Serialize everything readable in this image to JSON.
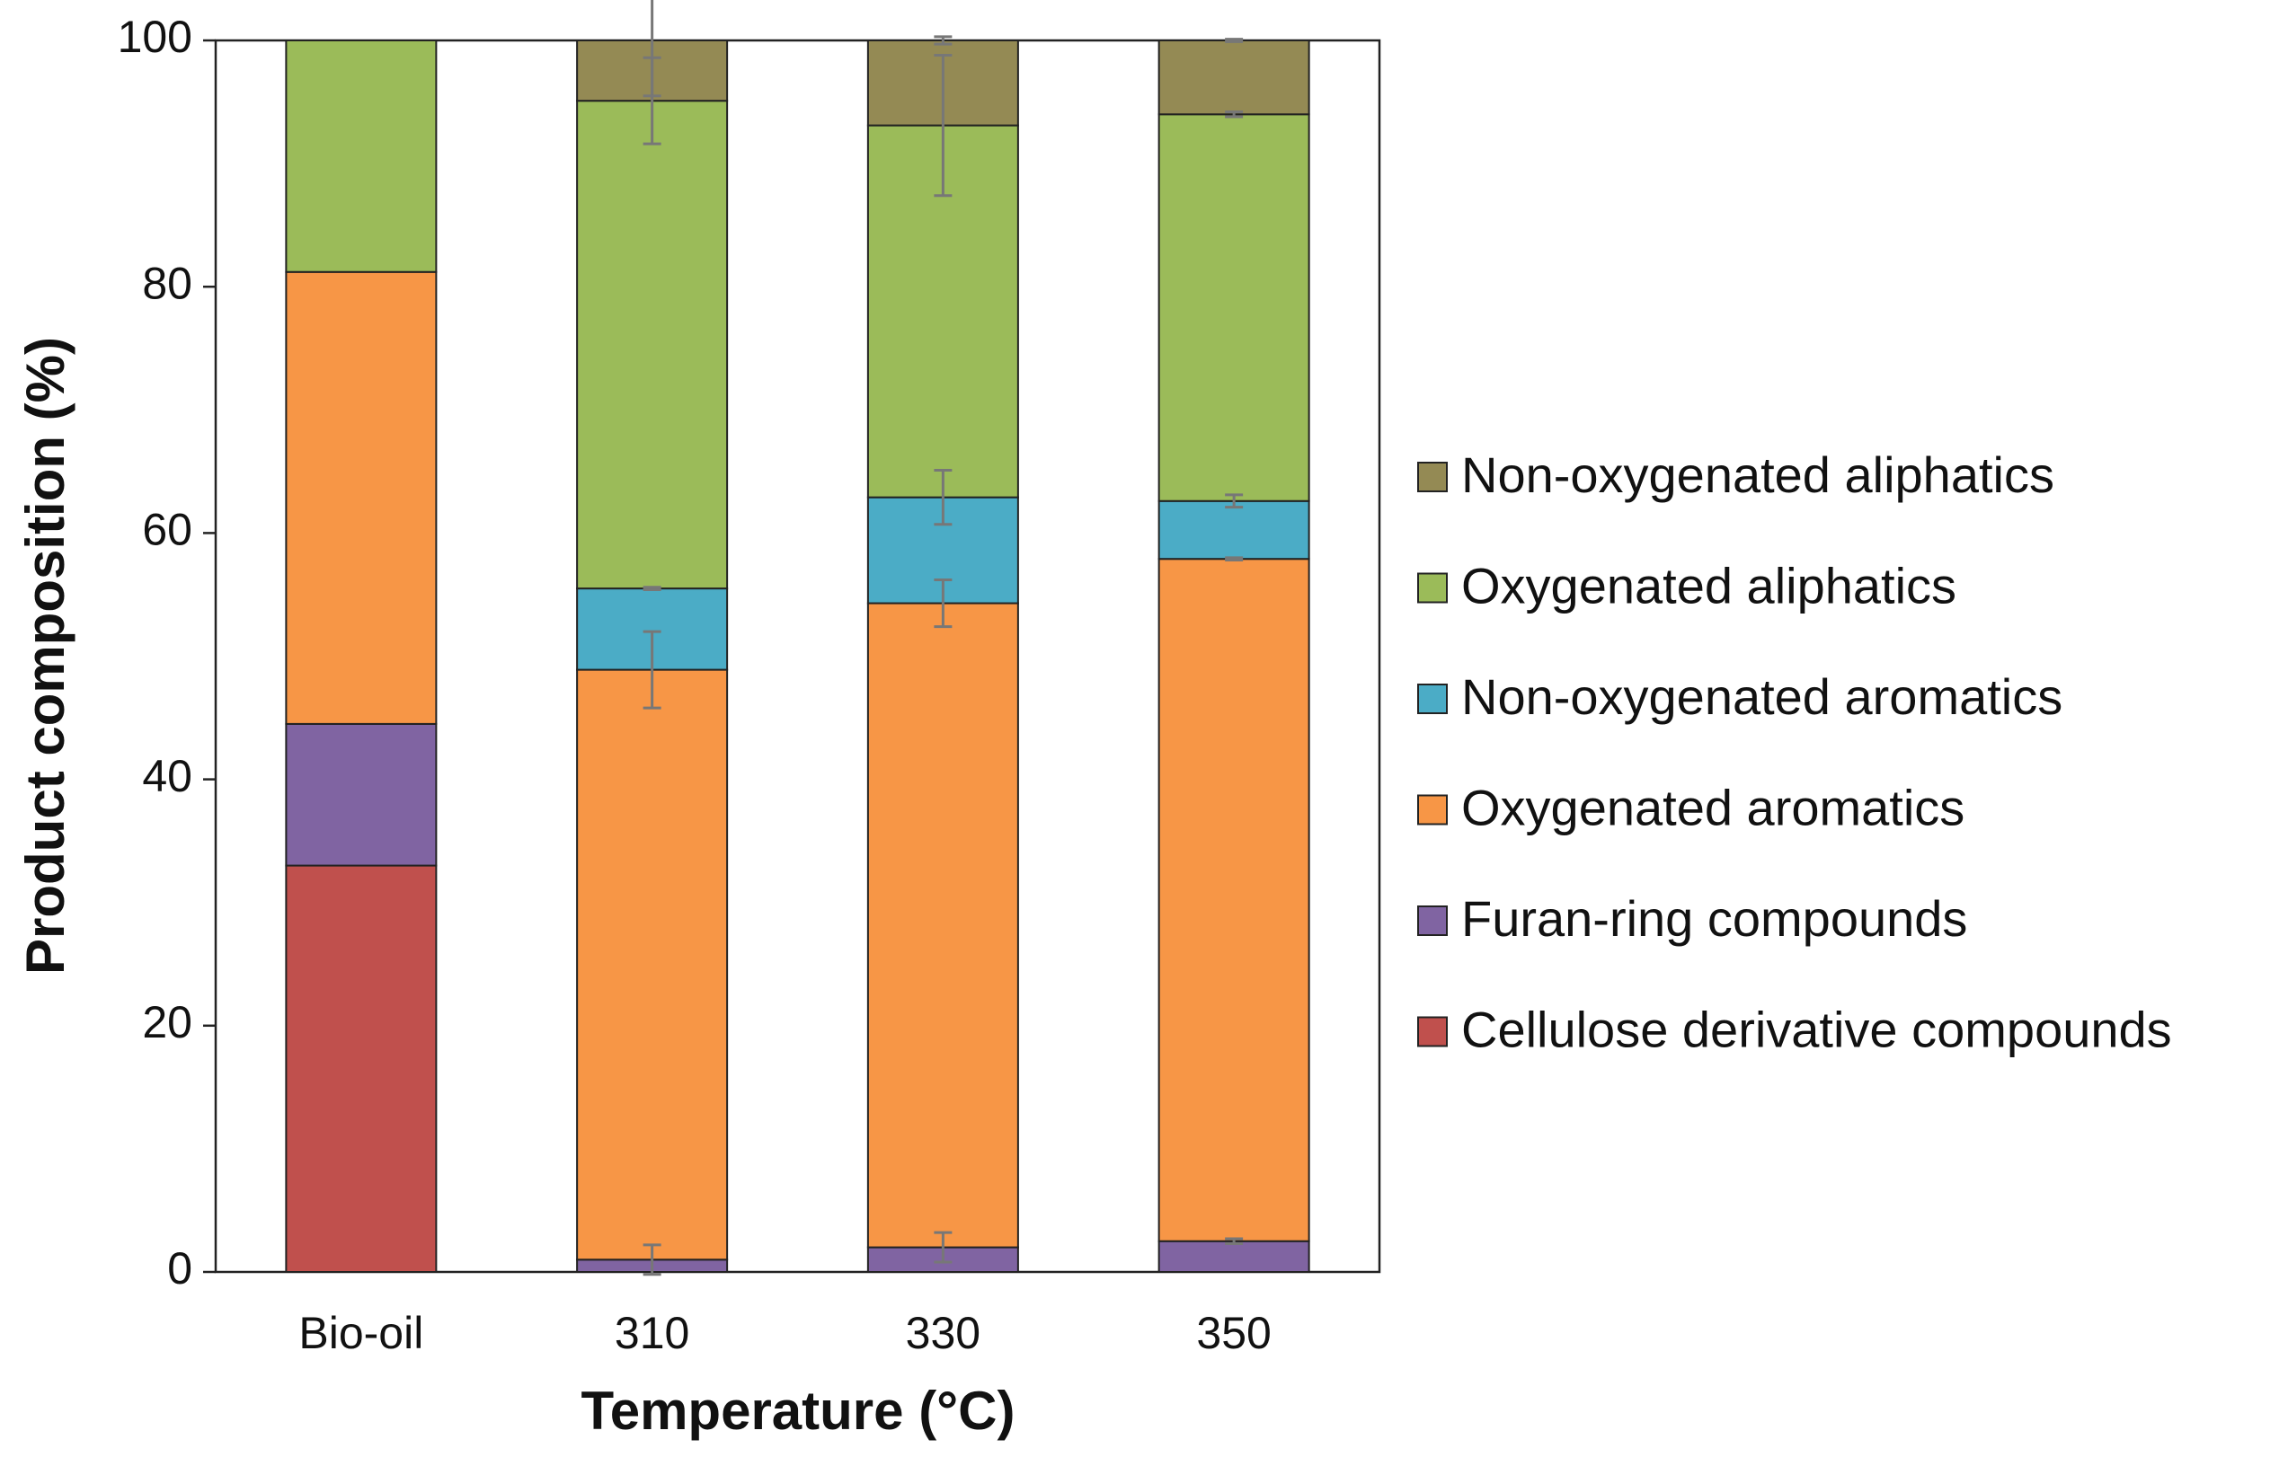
{
  "chart_data": {
    "type": "stacked_bar",
    "xlabel": "Temperature (°C)",
    "ylabel": "Product composition (%)",
    "categories": [
      "Bio-oil",
      "310",
      "330",
      "350"
    ],
    "ylim": [
      0,
      100
    ],
    "yticks": [
      0,
      20,
      40,
      60,
      80,
      100
    ],
    "legend": "right",
    "series": [
      {
        "name": "Cellulose derivative compounds",
        "color": "#c0504d",
        "values": [
          33,
          0,
          0,
          0
        ],
        "errors": [
          null,
          null,
          null,
          null
        ]
      },
      {
        "name": "Furan-ring compounds",
        "color": "#8064a2",
        "values": [
          11.5,
          1,
          2,
          2.5
        ],
        "errors": [
          null,
          1.2,
          1.2,
          0.2
        ]
      },
      {
        "name": "Oxygenated aromatics",
        "color": "#f79646",
        "values": [
          36.7,
          47.9,
          52.3,
          55.4
        ],
        "errors": [
          null,
          3.1,
          1.9,
          0.1
        ]
      },
      {
        "name": "Non-oxygenated aromatics",
        "color": "#4bacc6",
        "values": [
          0,
          6.6,
          8.6,
          4.7
        ],
        "errors": [
          null,
          0.1,
          2.2,
          0.5
        ]
      },
      {
        "name": "Oxygenated aliphatics",
        "color": "#9bbb59",
        "values": [
          18.8,
          39.6,
          30.2,
          31.4
        ],
        "errors": [
          null,
          3.5,
          5.7,
          0.2
        ]
      },
      {
        "name": "Non-oxygenated aliphatics",
        "color": "#948a54",
        "values": [
          0,
          4.9,
          6.9,
          6.0
        ],
        "errors": [
          null,
          4.5,
          0.3,
          0.1
        ]
      }
    ]
  }
}
